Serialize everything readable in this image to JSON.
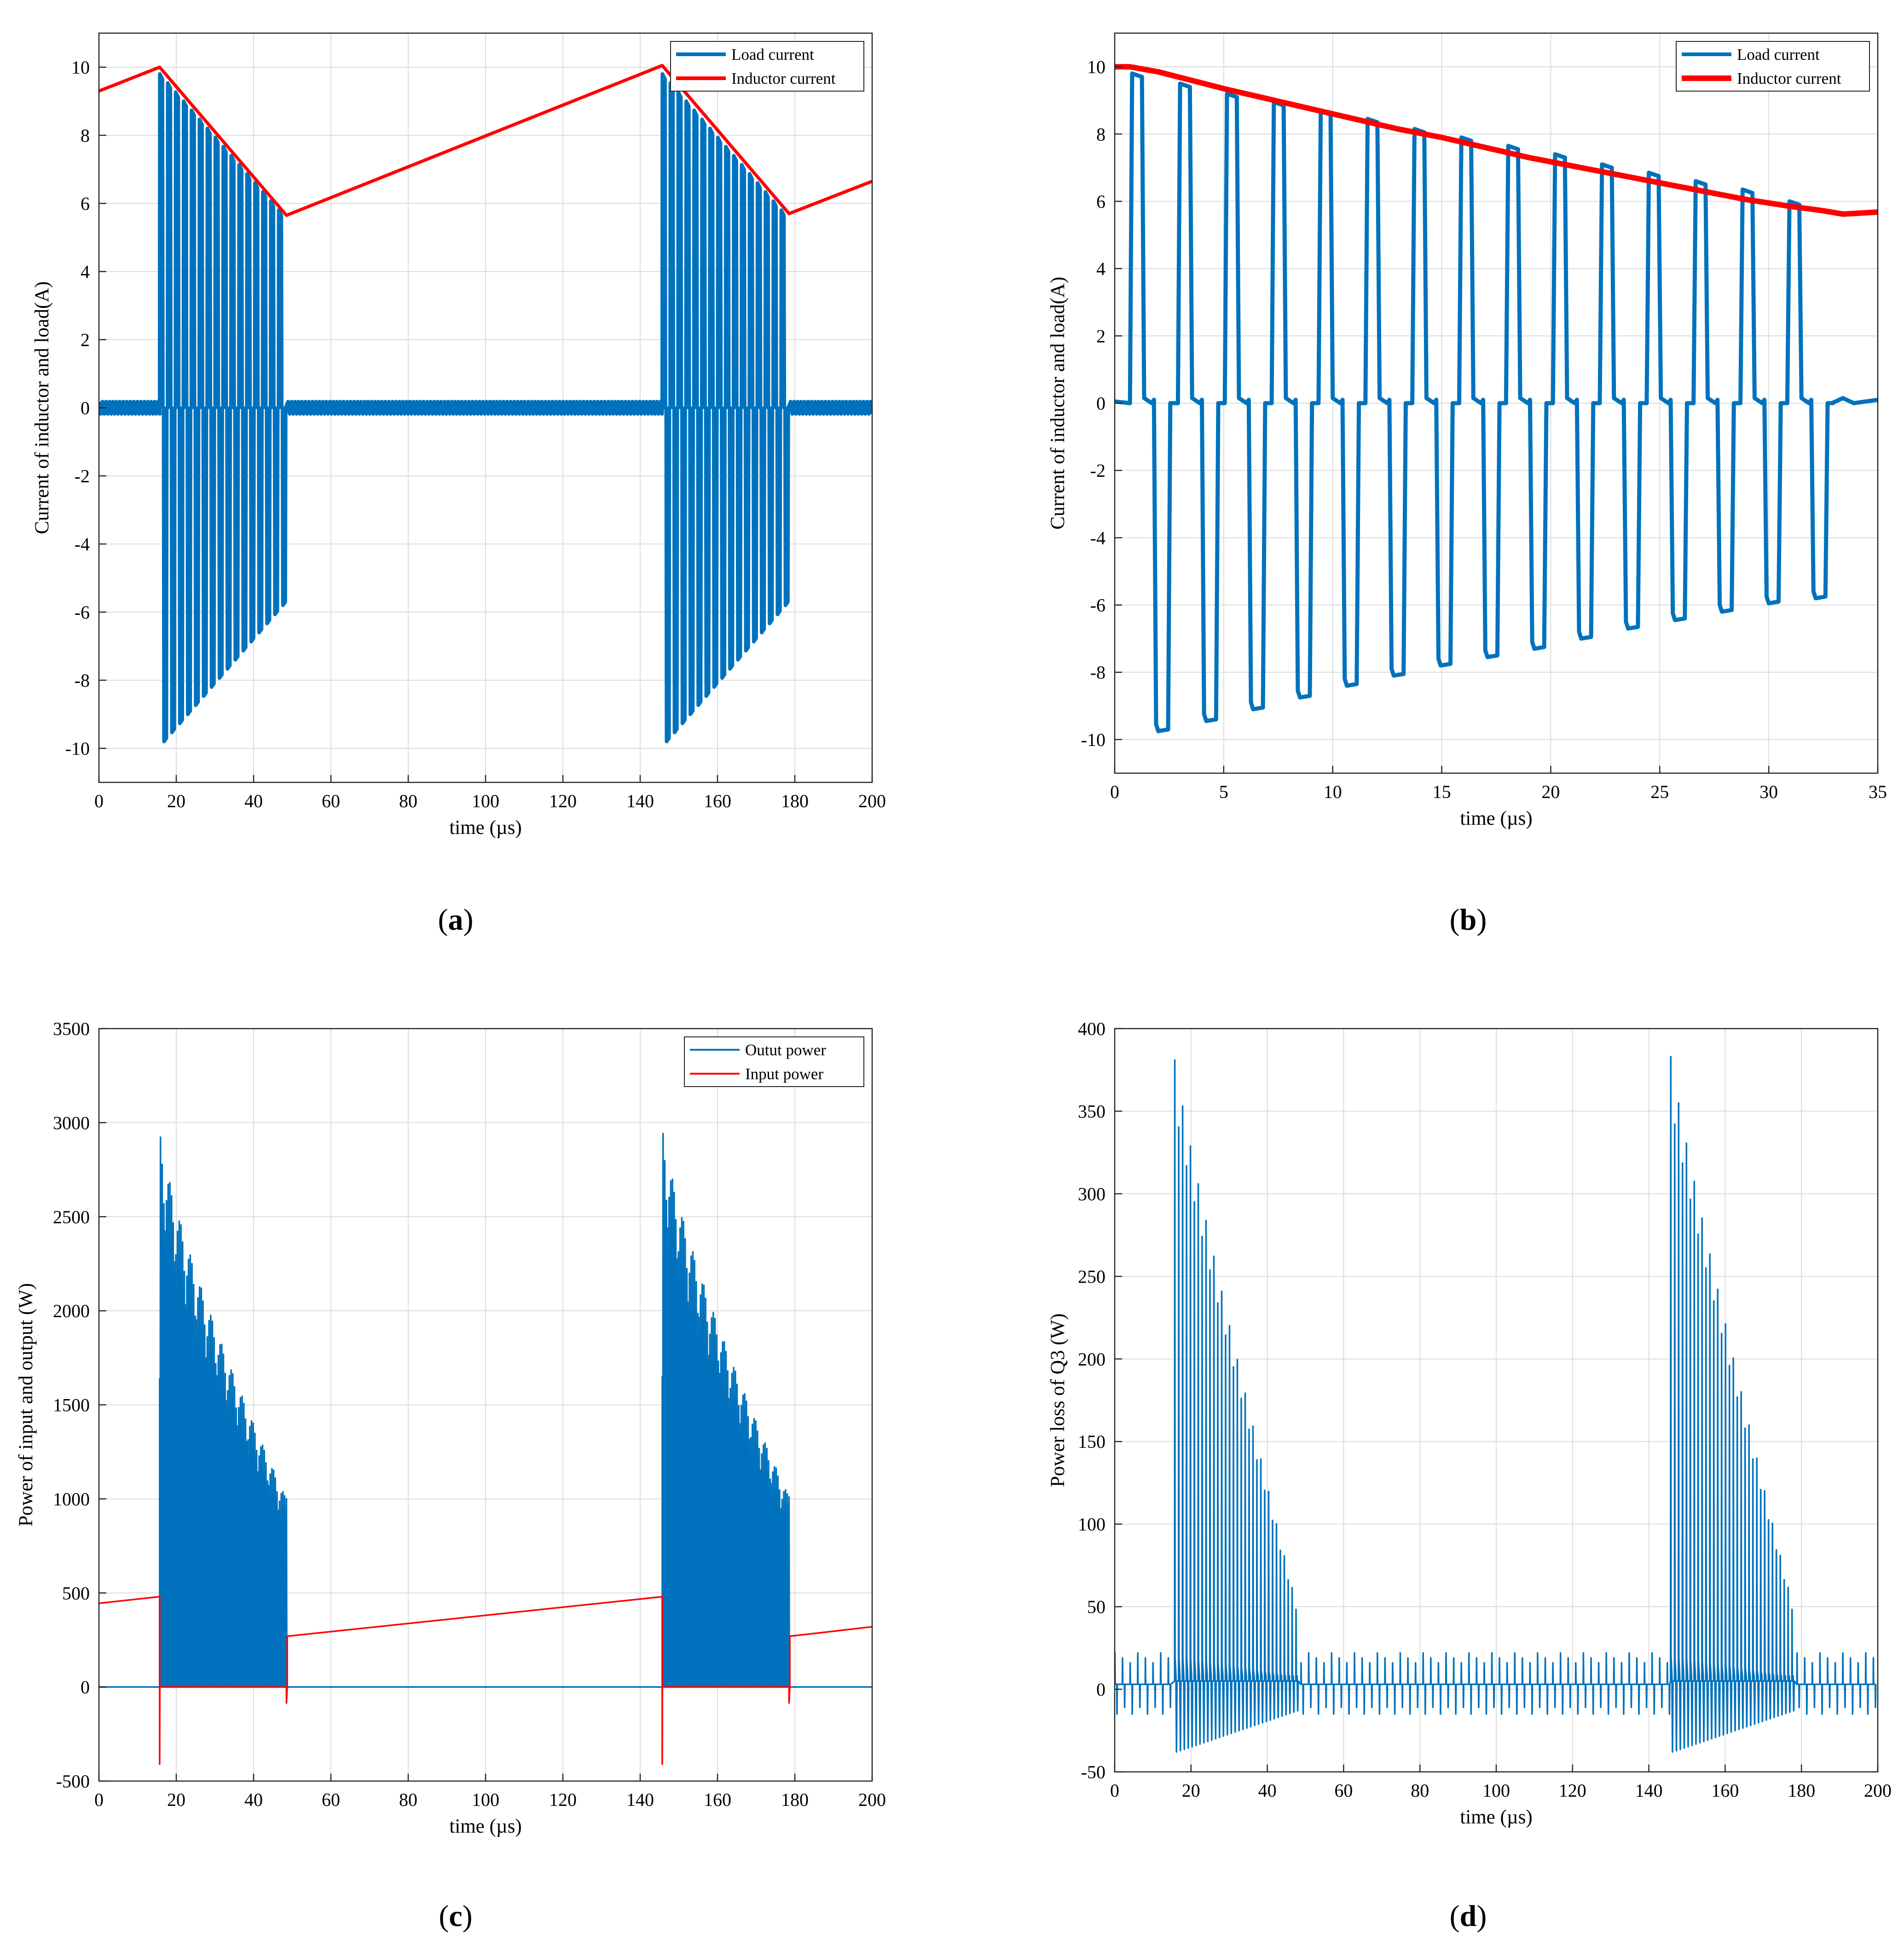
{
  "chart_data": [
    {
      "id": "a",
      "type": "line",
      "panel_label": "(a)",
      "xlabel": "time (µs)",
      "ylabel": "Current of inductor and load(A)",
      "xlim": [
        0,
        200
      ],
      "ylim": [
        -11,
        11
      ],
      "xticks": [
        0,
        20,
        40,
        60,
        80,
        100,
        120,
        140,
        160,
        180,
        200
      ],
      "yticks": [
        -10,
        -8,
        -6,
        -4,
        -2,
        0,
        2,
        4,
        6,
        8,
        10
      ],
      "grid": true,
      "legend": "top-right",
      "series": [
        {
          "name": "Load current",
          "color": "#0072BD",
          "kind": "pulsed_current",
          "bursts": [
            {
              "start": 15.7,
              "end": 48.5,
              "peak_start": 9.8,
              "peak_end": 5.8,
              "pulses": 16
            }
          ],
          "burst_period": 130,
          "idle_ripple": 0.18
        },
        {
          "name": "Inductor current",
          "color": "#FF0000",
          "kind": "polyline",
          "x": [
            0,
            15.7,
            48.5,
            145.7,
            178.5,
            200
          ],
          "y": [
            9.3,
            10.0,
            5.65,
            10.05,
            5.7,
            6.65
          ]
        }
      ]
    },
    {
      "id": "b",
      "type": "line",
      "panel_label": "(b)",
      "xlabel": "time (µs)",
      "ylabel": "Current of inductor and load(A)",
      "xlim": [
        0,
        35
      ],
      "ylim": [
        -11,
        11
      ],
      "xticks": [
        0,
        5,
        10,
        15,
        20,
        25,
        30,
        35
      ],
      "yticks": [
        -10,
        -8,
        -6,
        -4,
        -2,
        0,
        2,
        4,
        6,
        8,
        10
      ],
      "grid": true,
      "legend": "top-right",
      "series": [
        {
          "name": "Load current",
          "color": "#0072BD",
          "kind": "square_cycles",
          "cycle_starts": [
            0.7,
            2.9,
            5.05,
            7.2,
            9.35,
            11.5,
            13.65,
            15.8,
            17.95,
            20.1,
            22.25,
            24.4,
            26.55,
            28.7,
            30.85
          ],
          "pos_peaks": [
            9.8,
            9.5,
            9.2,
            8.95,
            8.7,
            8.45,
            8.15,
            7.9,
            7.65,
            7.4,
            7.1,
            6.85,
            6.6,
            6.35,
            6.0
          ],
          "neg_peaks": [
            -9.75,
            -9.45,
            -9.1,
            -8.75,
            -8.4,
            -8.1,
            -7.8,
            -7.55,
            -7.3,
            -7.0,
            -6.7,
            -6.45,
            -6.2,
            -5.95,
            -5.8
          ],
          "end_x": 32.4
        },
        {
          "name": "Inductor current",
          "color": "#FF0000",
          "kind": "polyline",
          "x": [
            0,
            0.7,
            2.0,
            3.5,
            5.0,
            7.0,
            9.0,
            11.0,
            13.0,
            15.0,
            17.0,
            19.0,
            21.0,
            23.0,
            25.0,
            27.0,
            29.0,
            31.0,
            32.5,
            33.4,
            35.0
          ],
          "y": [
            10.0,
            10.0,
            9.85,
            9.6,
            9.35,
            9.05,
            8.75,
            8.45,
            8.15,
            7.9,
            7.6,
            7.3,
            7.05,
            6.8,
            6.55,
            6.3,
            6.05,
            5.85,
            5.72,
            5.62,
            5.68
          ]
        }
      ]
    },
    {
      "id": "c",
      "type": "line",
      "panel_label": "(c)",
      "xlabel": "time (µs)",
      "ylabel": "Power of input and output (W)",
      "xlim": [
        0,
        200
      ],
      "ylim": [
        -500,
        3500
      ],
      "xticks": [
        0,
        20,
        40,
        60,
        80,
        100,
        120,
        140,
        160,
        180,
        200
      ],
      "yticks": [
        -500,
        0,
        500,
        1000,
        1500,
        2000,
        2500,
        3000,
        3500
      ],
      "grid": true,
      "legend": "top-right",
      "series": [
        {
          "name": "Outut power",
          "color": "#0072BD",
          "kind": "power_bursts",
          "bursts": [
            {
              "start": 15.7,
              "end": 48.5,
              "peak_start": 2980,
              "peak_end": 1000
            },
            {
              "start": 145.7,
              "end": 178.5,
              "peak_start": 3000,
              "peak_end": 1010
            }
          ]
        },
        {
          "name": "Input power",
          "color": "#FF0000",
          "kind": "polyline",
          "x": [
            0,
            15.7,
            15.7,
            15.75,
            15.9,
            48.5,
            48.5,
            48.7,
            48.7,
            145.7,
            145.7,
            145.75,
            145.9,
            178.5,
            178.5,
            178.7,
            178.7,
            200
          ],
          "y": [
            445,
            480,
            -410,
            0,
            0,
            0,
            -85,
            0,
            270,
            480,
            -410,
            0,
            0,
            0,
            -85,
            0,
            270,
            320
          ]
        }
      ]
    },
    {
      "id": "d",
      "type": "line",
      "panel_label": "(d)",
      "xlabel": "time (µs)",
      "ylabel": "Power loss of Q3 (W)",
      "xlim": [
        0,
        200
      ],
      "ylim": [
        -50,
        400
      ],
      "xticks": [
        0,
        20,
        40,
        60,
        80,
        100,
        120,
        140,
        160,
        180,
        200
      ],
      "yticks": [
        -50,
        0,
        50,
        100,
        150,
        200,
        250,
        300,
        350,
        400
      ],
      "grid": true,
      "legend": "none",
      "series": [
        {
          "name": "Power loss of Q3",
          "color": "#0072BD",
          "kind": "loss_spikes",
          "bursts": [
            {
              "start": 15.7,
              "end": 48.5,
              "peak_start": 381,
              "peak_end": 52
            },
            {
              "start": 145.7,
              "end": 178.5,
              "peak_start": 383,
              "peak_end": 52
            }
          ],
          "idle_spike_pos": 22,
          "idle_spike_neg": -15
        }
      ]
    }
  ]
}
